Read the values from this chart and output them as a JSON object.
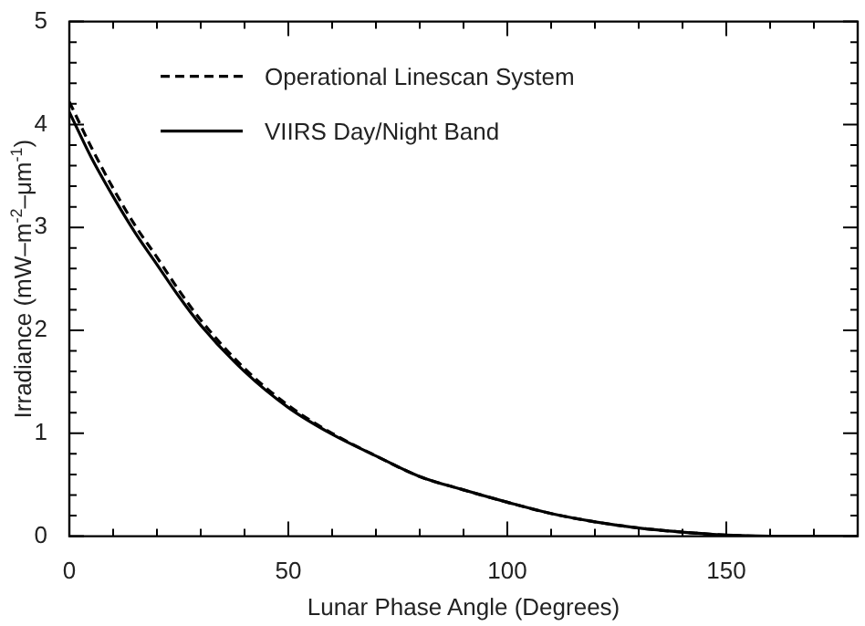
{
  "chart_data": {
    "type": "line",
    "xlabel": "Lunar Phase Angle (Degrees)",
    "ylabel": "Irradiance (mW–m$^{-2}$–μm$^{-1}$)",
    "x": [
      0,
      5,
      10,
      15,
      20,
      25,
      30,
      40,
      50,
      60,
      70,
      80,
      90,
      100,
      110,
      120,
      130,
      140,
      150,
      160,
      170,
      180
    ],
    "series": [
      {
        "name": "Operational Linescan System",
        "color": "#000000",
        "line_style": "dashed",
        "values": [
          4.22,
          3.78,
          3.38,
          3.02,
          2.71,
          2.39,
          2.1,
          1.63,
          1.27,
          1.0,
          0.78,
          0.58,
          0.45,
          0.33,
          0.22,
          0.14,
          0.08,
          0.04,
          0.01,
          0,
          0,
          0
        ]
      },
      {
        "name": "VIIRS Day/Night Band",
        "color": "#000000",
        "line_style": "solid",
        "values": [
          4.12,
          3.68,
          3.3,
          2.95,
          2.64,
          2.33,
          2.05,
          1.6,
          1.25,
          0.99,
          0.78,
          0.58,
          0.45,
          0.33,
          0.22,
          0.14,
          0.08,
          0.04,
          0.01,
          0,
          0,
          0
        ]
      }
    ],
    "xlim": [
      0,
      180
    ],
    "xticks": [
      0,
      {
        "value": 10,
        "label": null
      },
      {
        "value": 20,
        "label": null
      },
      {
        "value": 30,
        "label": null
      },
      {
        "value": 40,
        "label": null
      },
      50,
      {
        "value": 60,
        "label": null
      },
      {
        "value": 70,
        "label": null
      },
      {
        "value": 80,
        "label": null
      },
      {
        "value": 90,
        "label": null
      },
      100,
      {
        "value": 110,
        "label": null
      },
      {
        "value": 120,
        "label": null
      },
      {
        "value": 130,
        "label": null
      },
      {
        "value": 140,
        "label": null
      },
      150,
      {
        "value": 160,
        "label": null
      },
      {
        "value": 170,
        "label": null
      },
      {
        "value": 180,
        "label": null
      }
    ],
    "ylim": [
      0,
      5
    ],
    "yticks": [
      0,
      {
        "value": 0.2,
        "label": null
      },
      {
        "value": 0.4,
        "label": null
      },
      {
        "value": 0.6,
        "label": null
      },
      {
        "value": 0.8,
        "label": null
      },
      1,
      {
        "value": 1.2,
        "label": null
      },
      {
        "value": 1.4,
        "label": null
      },
      {
        "value": 1.6,
        "label": null
      },
      {
        "value": 1.8,
        "label": null
      },
      2,
      {
        "value": 2.2,
        "label": null
      },
      {
        "value": 2.4,
        "label": null
      },
      {
        "value": 2.6,
        "label": null
      },
      {
        "value": 2.8,
        "label": null
      },
      3,
      {
        "value": 3.2,
        "label": null
      },
      {
        "value": 3.4,
        "label": null
      },
      {
        "value": 3.6,
        "label": null
      },
      {
        "value": 3.8,
        "label": null
      },
      4,
      {
        "value": 4.2,
        "label": null
      },
      {
        "value": 4.4,
        "label": null
      },
      {
        "value": 4.6,
        "label": null
      },
      {
        "value": 4.8,
        "label": null
      },
      5
    ],
    "legend": "top left",
    "grid": false,
    "marker": "none"
  }
}
